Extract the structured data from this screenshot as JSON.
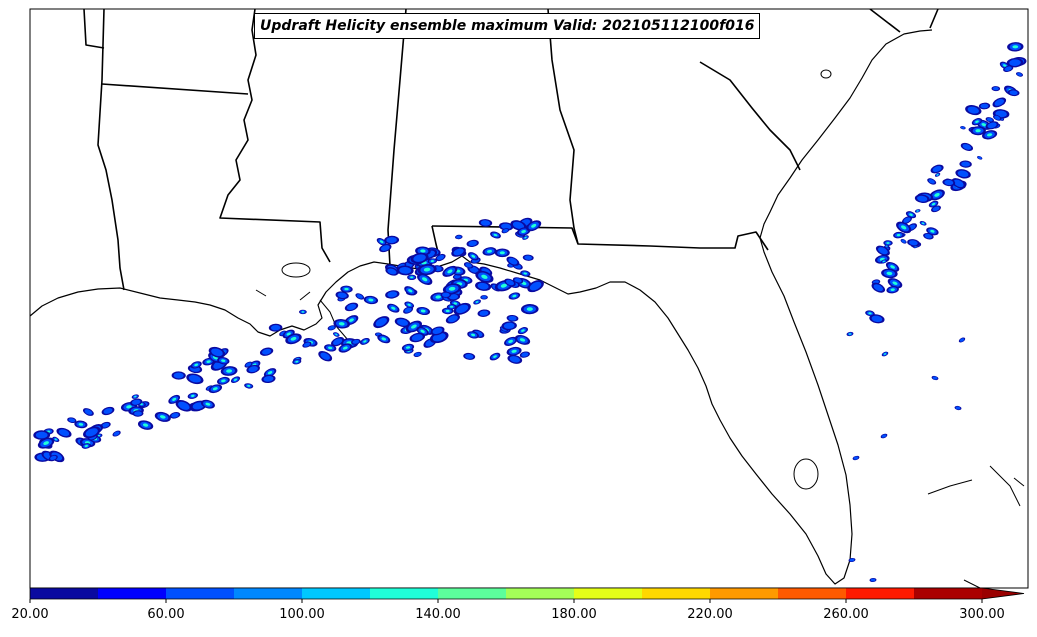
{
  "title": "Updraft Helicity ensemble maximum Valid: 202105112100f016",
  "colorbar": {
    "bins": [
      {
        "color": "#0a0aa0"
      },
      {
        "color": "#0000ff"
      },
      {
        "color": "#0050ff"
      },
      {
        "color": "#0088ff"
      },
      {
        "color": "#00c8ff"
      },
      {
        "color": "#20ffd8"
      },
      {
        "color": "#5cff9c"
      },
      {
        "color": "#a4ff58"
      },
      {
        "color": "#e4ff18"
      },
      {
        "color": "#ffd800"
      },
      {
        "color": "#ff9a00"
      },
      {
        "color": "#ff5a00"
      },
      {
        "color": "#ff1a00"
      },
      {
        "color": "#aa0000"
      }
    ],
    "extend_color": "#9a0000",
    "tick_labels": [
      "20.00",
      "60.00",
      "100.00",
      "140.00",
      "180.00",
      "220.00",
      "260.00",
      "300.00"
    ]
  },
  "colors": {
    "coast": "#000000",
    "low": "#0a0aa0",
    "mid": "#0050ff",
    "high": "#20ffd8",
    "peak": "#e4ff18"
  }
}
